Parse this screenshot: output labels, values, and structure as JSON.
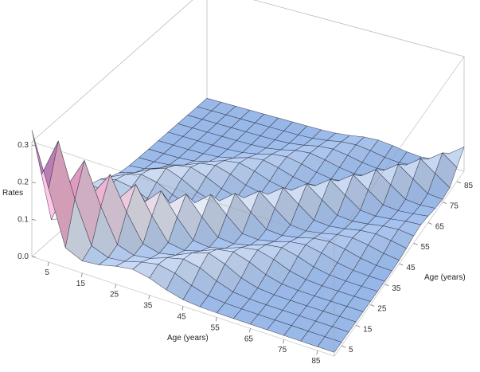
{
  "chart_data": {
    "type": "surface3d",
    "title": "",
    "zlabel": "Rates",
    "xlabel": "Age (years)",
    "ylabel": "Age (years)",
    "zlim": [
      0.0,
      0.3
    ],
    "z_ticks": [
      "0.0",
      "0.1",
      "0.2",
      "0.3"
    ],
    "x_ticks": [
      "5",
      "15",
      "25",
      "35",
      "45",
      "55",
      "65",
      "75",
      "85"
    ],
    "y_ticks": [
      "5",
      "15",
      "25",
      "35",
      "45",
      "55",
      "65",
      "75",
      "85"
    ],
    "x_ages": [
      0,
      5,
      10,
      15,
      20,
      25,
      30,
      35,
      40,
      45,
      50,
      55,
      60,
      65,
      70,
      75,
      80,
      85,
      90
    ],
    "y_ages": [
      0,
      5,
      10,
      15,
      20,
      25,
      30,
      35,
      40,
      45,
      50,
      55,
      60,
      65,
      70,
      75,
      80,
      85,
      90
    ],
    "description_of_values": "Estimated contact rates by age pair; peaks near 0.33 along the young-age diagonal, a ridge along the diagonal decaying with age, and a secondary off-diagonal (parent-child) band around 0.08-0.12.",
    "colors": {
      "low": "#8eb1e6",
      "mid": "#e6ecf7",
      "high": "#f0a6c8",
      "peak": "#7a4fa0",
      "warm": "#f3c79a"
    }
  }
}
